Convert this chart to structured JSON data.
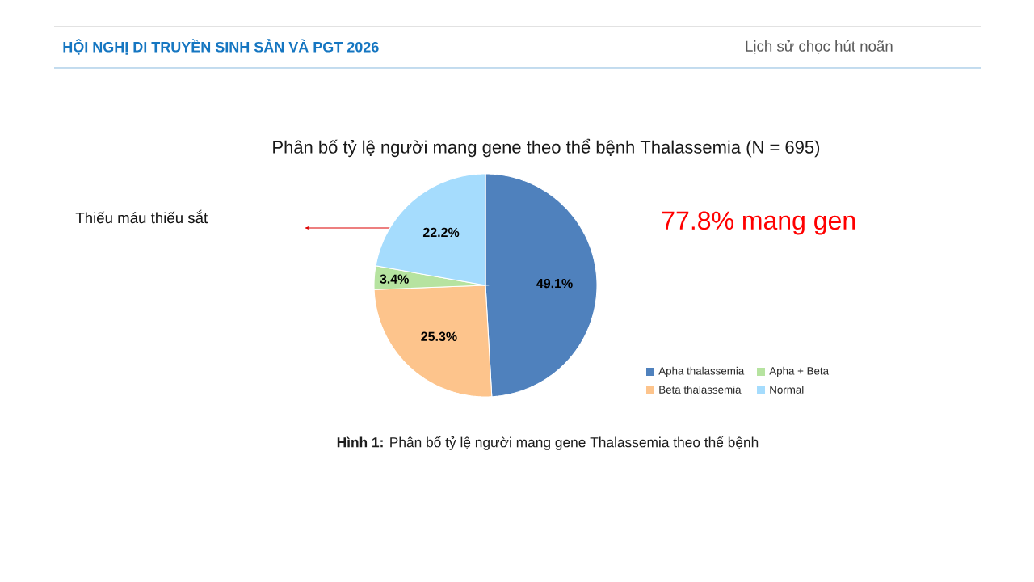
{
  "chart_data": {
    "type": "pie",
    "title": "Phân bố tỷ lệ người mang gene theo thể bệnh Thalassemia (N = 695)",
    "categories": [
      "Apha thalassemia",
      "Beta thalassemia",
      "Apha + Beta",
      "Normal"
    ],
    "values": [
      49.1,
      25.3,
      3.4,
      22.2
    ],
    "value_labels": [
      "49.1%",
      "25.3%",
      "3.4%",
      "22.2%"
    ],
    "colors": [
      "#4f81bd",
      "#fdc48c",
      "#b6e3a0",
      "#a5dcfd"
    ],
    "legend": "bottom right",
    "annotations": [
      "HỘI NGHỊ DI TRUYỀN SINH SẢN VÀ PGT 2026",
      "Lịch sử chọc hút noãn",
      "77.8% mang gen",
      "**Hình 1:** Phân bố tỷ lệ người mang gene Thalassemia theo thể bệnh",
      "Thiếu máu thiếu sắt"
    ]
  }
}
